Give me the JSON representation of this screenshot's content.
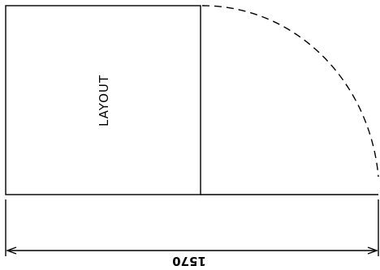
{
  "drawing": {
    "area_label": "LAYOUT",
    "dimension_label": "1570"
  }
}
